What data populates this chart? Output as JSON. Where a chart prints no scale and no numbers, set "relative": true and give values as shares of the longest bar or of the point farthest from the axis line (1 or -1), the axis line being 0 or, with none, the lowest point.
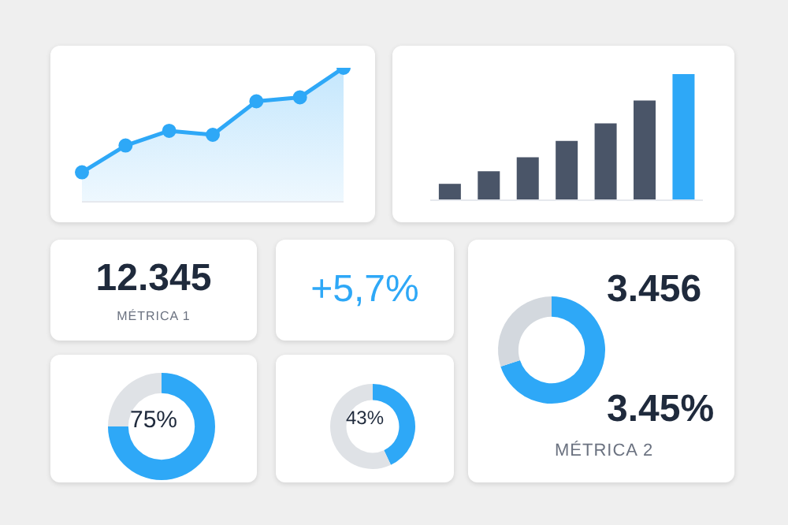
{
  "chart_data": [
    {
      "type": "area",
      "relative": true,
      "marker": "circle",
      "categories": [
        null,
        null,
        null,
        null,
        null,
        null,
        null
      ],
      "series": [
        {
          "color": "#2ea8f7",
          "values": [
            0.22,
            0.42,
            0.53,
            0.5,
            0.75,
            0.78,
            1
          ]
        }
      ]
    },
    {
      "type": "bar",
      "relative": true,
      "categories": [
        null,
        null,
        null,
        null,
        null,
        null,
        null
      ],
      "values": [
        0.13,
        0.23,
        0.34,
        0.47,
        0.61,
        0.79,
        1
      ],
      "colors": [
        "#4a5568",
        "#4a5568",
        "#4a5568",
        "#4a5568",
        "#4a5568",
        "#4a5568",
        "#2ea8f7"
      ]
    },
    {
      "type": "other",
      "title": "12.345",
      "subtitle": "MÉTRICA 1"
    },
    {
      "type": "other",
      "title": "+5,7%",
      "color": "#2ea8f7"
    },
    {
      "type": "donut",
      "categories": [
        null,
        null
      ],
      "values": [
        70,
        30
      ],
      "colors": [
        "#2ea8f7",
        "#d3d8de"
      ],
      "annotations": [
        "3.456",
        "3.45%",
        "MÉTRICA 2"
      ]
    },
    {
      "type": "donut",
      "categories": [
        null,
        null
      ],
      "values": [
        75,
        25
      ],
      "colors": [
        "#2ea8f7",
        "#dfe2e6"
      ],
      "annotations": [
        "75%"
      ]
    },
    {
      "type": "donut",
      "categories": [
        null,
        null
      ],
      "values": [
        43,
        57
      ],
      "colors": [
        "#2ea8f7",
        "#dfe2e6"
      ],
      "annotations": [
        "43%"
      ]
    }
  ]
}
